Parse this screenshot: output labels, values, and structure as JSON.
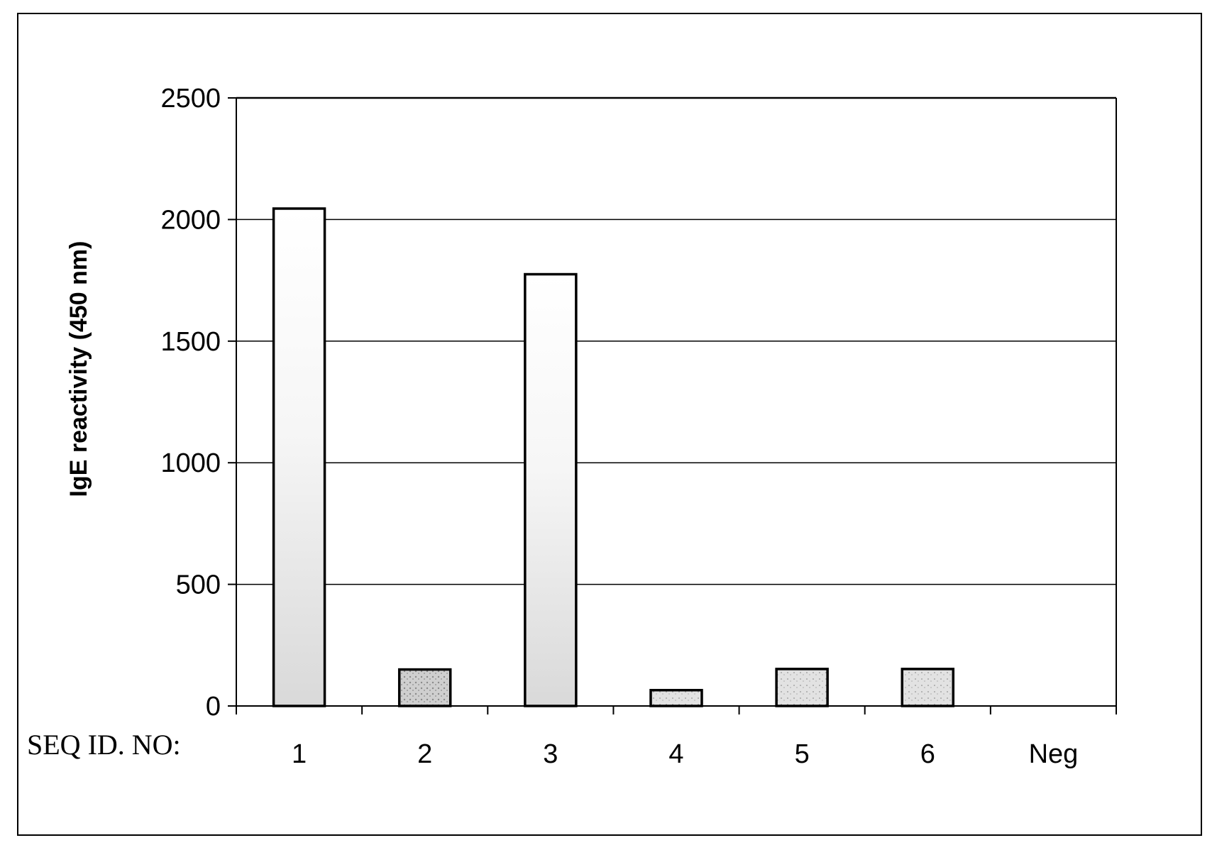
{
  "chart_data": {
    "type": "bar",
    "ylabel": "IgE reactivity (450 nm)",
    "xlabel_prefix": "SEQ ID. NO:",
    "categories": [
      "1",
      "2",
      "3",
      "4",
      "5",
      "6",
      "Neg"
    ],
    "values": [
      2045,
      150,
      1775,
      65,
      152,
      152,
      0
    ],
    "ylim": [
      0,
      2500
    ],
    "yticks": [
      0,
      500,
      1000,
      1500,
      2000,
      2500
    ],
    "grid": true,
    "legend": "none",
    "colors": {
      "bar_light": "#f0f0f0",
      "bar_dark": "#c8c8c8",
      "bar_mid": "#d8d8d8",
      "axis": "#000000",
      "grid": "#000000"
    }
  }
}
